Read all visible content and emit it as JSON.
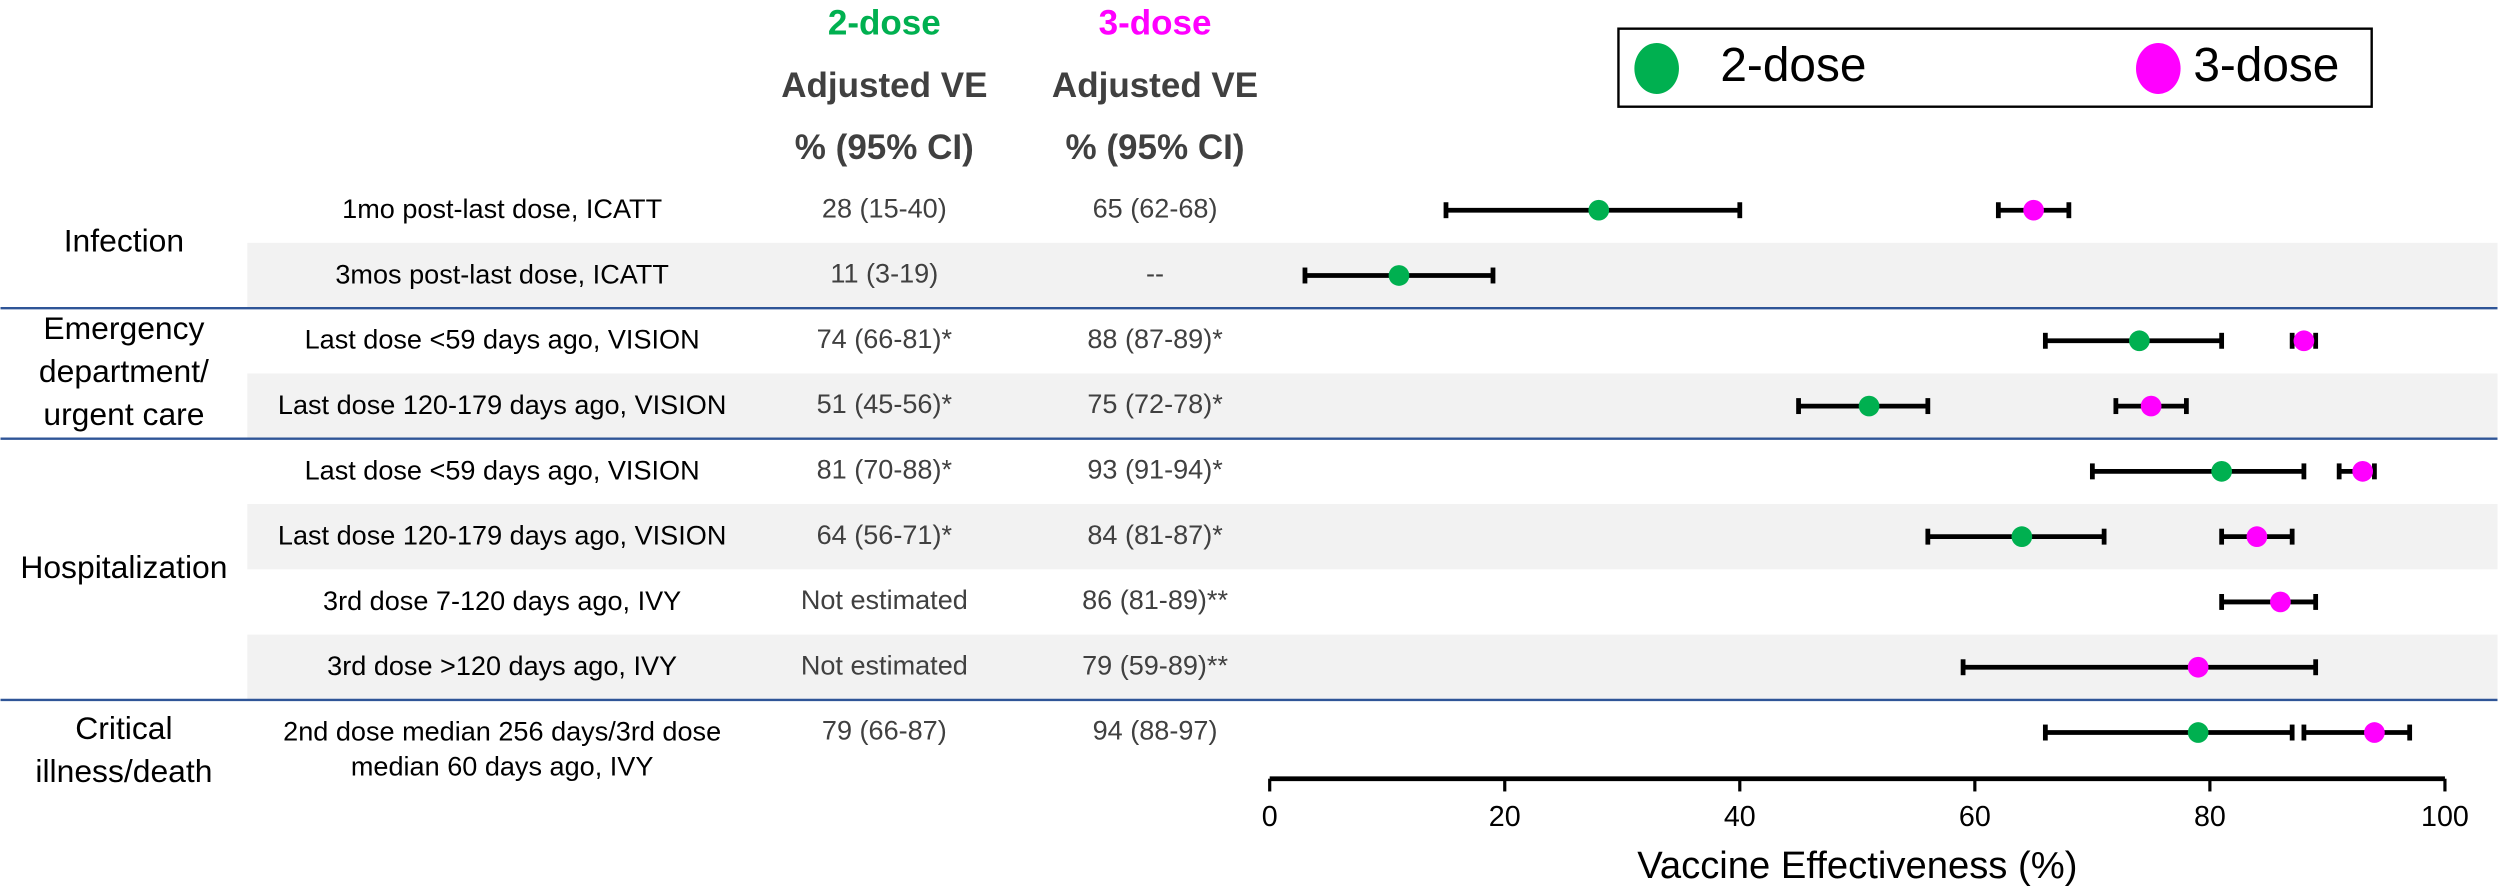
{
  "chart_data": {
    "type": "forest",
    "column_header": [
      "Adjusted VE",
      "% (95% CI)"
    ],
    "groups": [
      {
        "name": "Infection",
        "categories": [
          "1mo post-last dose, ICATT",
          "3mos post-last dose, ICATT"
        ]
      },
      {
        "name": "Emergency department/ urgent care",
        "categories": [
          "Last dose <59 days ago, VISION",
          "Last dose 120-179 days ago, VISION"
        ]
      },
      {
        "name": "Hospitalization",
        "categories": [
          "Last dose <59 days ago, VISION",
          "Last dose 120-179 days ago, VISION",
          "3rd dose 7-120 days ago, IVY",
          "3rd dose >120 days ago, IVY"
        ]
      },
      {
        "name": "Critical illness/death",
        "categories": [
          "2nd dose median 256 days/3rd dose median 60 days ago, IVY"
        ]
      }
    ],
    "series": [
      {
        "name": "2-dose",
        "color": "#00b050",
        "values": [
          28,
          11,
          74,
          51,
          81,
          64,
          null,
          null,
          79
        ],
        "lower": [
          15,
          3,
          66,
          45,
          70,
          56,
          null,
          null,
          66
        ],
        "upper": [
          40,
          19,
          81,
          56,
          88,
          71,
          null,
          null,
          87
        ],
        "value_labels": [
          "28 (15-40)",
          "11 (3-19)",
          "74 (66-81)*",
          "51 (45-56)*",
          "81 (70-88)*",
          "64 (56-71)*",
          "Not estimated",
          "Not estimated",
          "79 (66-87)"
        ]
      },
      {
        "name": "3-dose",
        "color": "#ff00ff",
        "values": [
          65,
          null,
          88,
          75,
          93,
          84,
          86,
          79,
          94
        ],
        "lower": [
          62,
          null,
          87,
          72,
          91,
          81,
          81,
          59,
          88
        ],
        "upper": [
          68,
          null,
          89,
          78,
          94,
          87,
          89,
          89,
          97
        ],
        "value_labels": [
          "65 (62-68)",
          "--",
          "88 (87-89)*",
          "75 (72-78)*",
          "93 (91-94)*",
          "84 (81-87)*",
          "86 (81-89)**",
          "79 (59-89)**",
          "94 (88-97)"
        ]
      }
    ],
    "xlabel": "Vaccine Effectiveness (%)",
    "xlim": [
      0,
      100
    ],
    "xticks": [
      0,
      20,
      40,
      60,
      80,
      100
    ]
  }
}
